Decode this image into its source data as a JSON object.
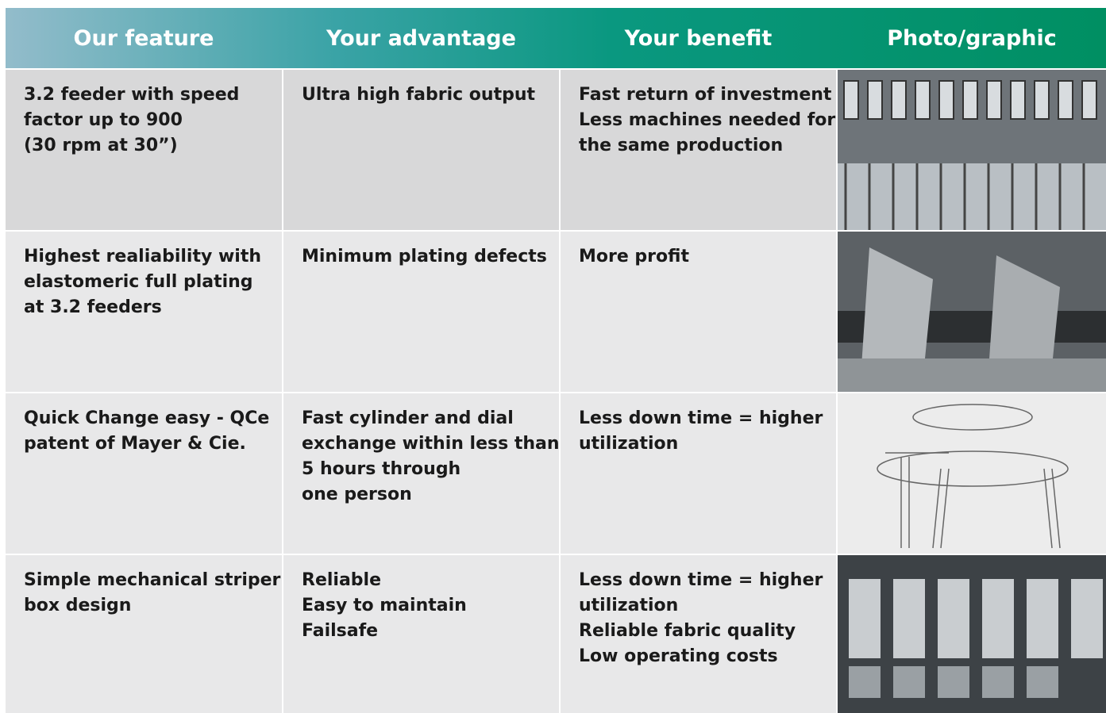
{
  "table": {
    "header": [
      "Our feature",
      "Your advantage",
      "Your benefit",
      "Photo/graphic"
    ],
    "rows": [
      [
        [
          "3.2 feeder with speed",
          "factor up to 900",
          "(30 rpm at 30”)"
        ],
        [
          "Ultra high fabric output"
        ],
        [
          "Fast return of investment",
          "Less machines needed for",
          "the same production"
        ]
      ],
      [
        [
          "Highest realiability with",
          "elastomeric full plating",
          "at 3.2 feeders"
        ],
        [
          "Minimum plating defects"
        ],
        [
          "More profit"
        ]
      ],
      [
        [
          "Quick Change easy - QCe",
          "patent of Mayer & Cie."
        ],
        [
          "Fast cylinder and dial",
          "exchange within less than",
          "5 hours through",
          "one person"
        ],
        [
          "Less down time = higher",
          "utilization"
        ]
      ],
      [
        [
          "Simple mechanical striper",
          "box design"
        ],
        [
          "Reliable",
          "Easy to maintain",
          "Failsafe"
        ],
        [
          "Less down time = higher",
          "utilization",
          "Reliable fabric quality",
          "Low operating costs"
        ]
      ]
    ]
  }
}
